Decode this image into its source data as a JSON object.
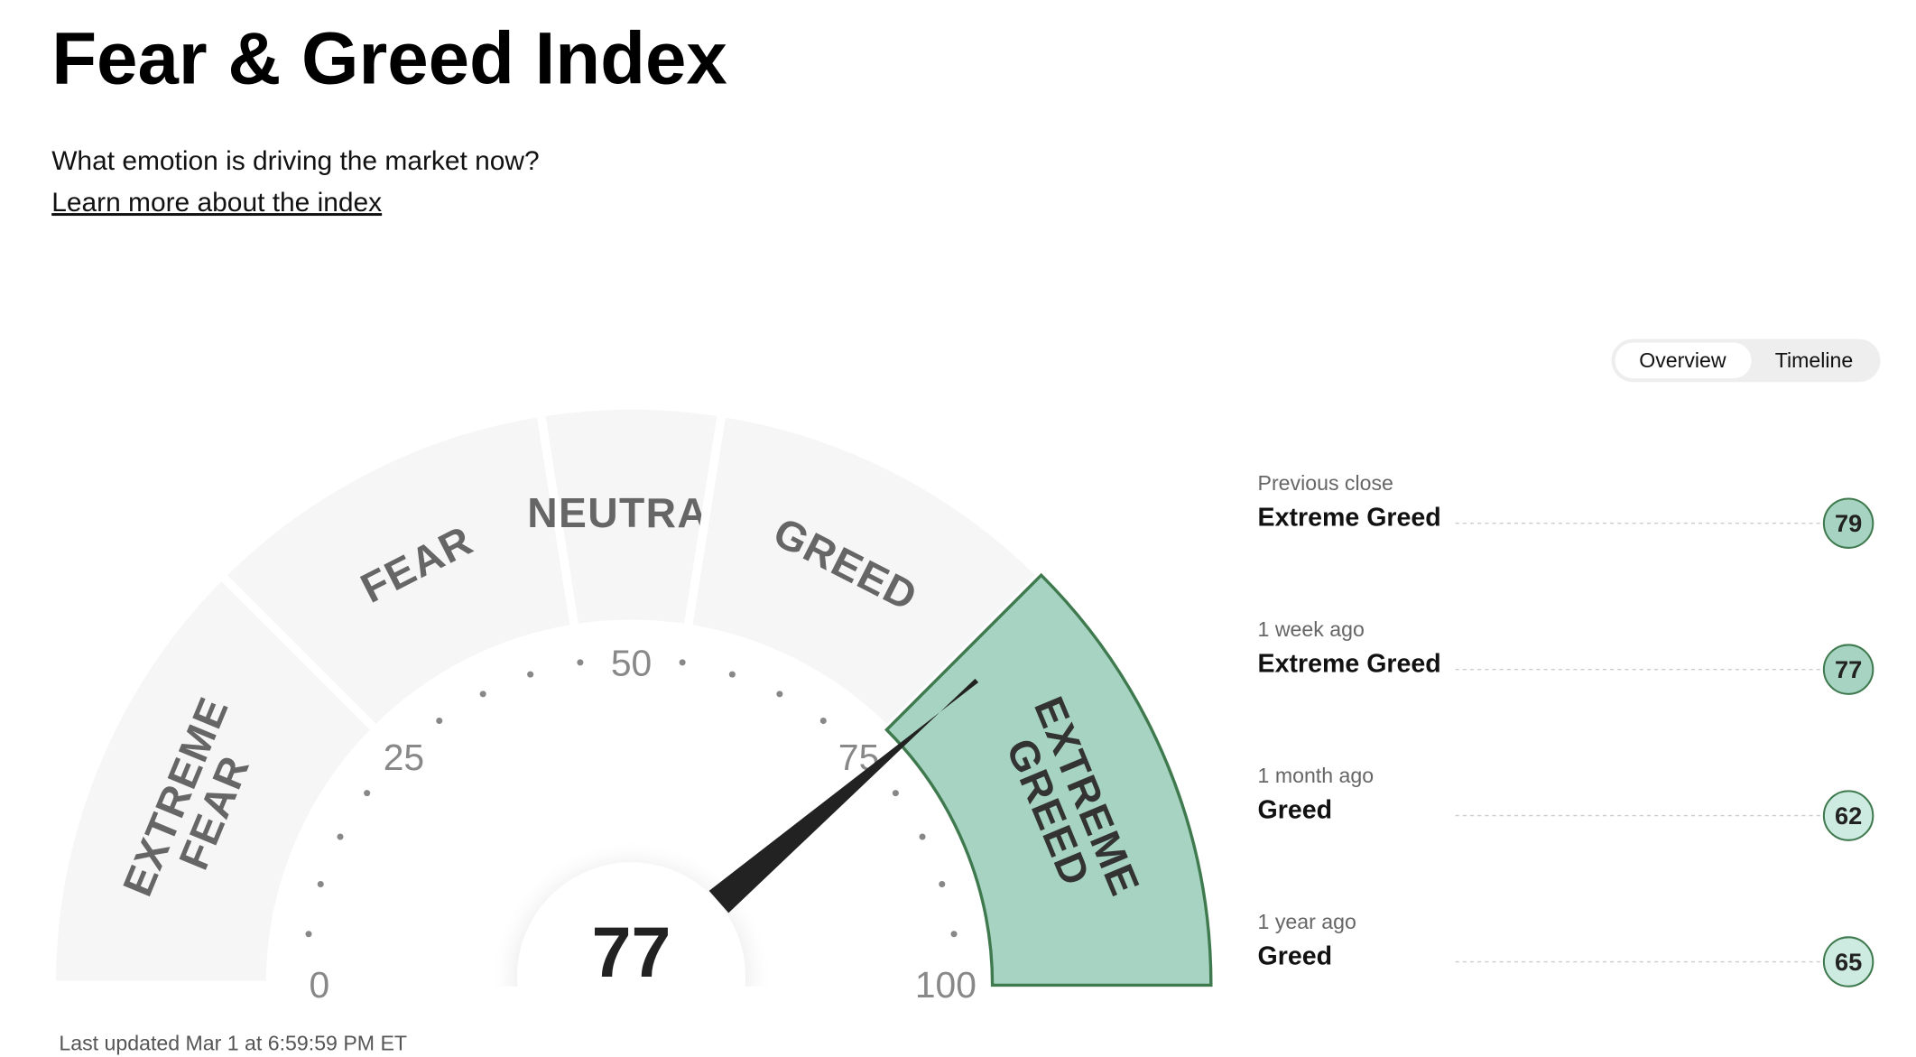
{
  "header": {
    "title": "Fear & Greed Index",
    "subtitle": "What emotion is driving the market now?",
    "link": "Learn more about the index"
  },
  "tabs": [
    "Overview",
    "Timeline"
  ],
  "chart_data": {
    "type": "gauge",
    "value": 77,
    "xlim": [
      0,
      100
    ],
    "xticks": [
      0,
      25,
      50,
      75,
      100
    ],
    "zones": [
      {
        "label": [
          "EXTREME",
          "FEAR"
        ],
        "range": [
          0,
          25
        ]
      },
      {
        "label": [
          "FEAR"
        ],
        "range": [
          25,
          45
        ]
      },
      {
        "label": [
          "NEUTRAL"
        ],
        "range": [
          45,
          55
        ]
      },
      {
        "label": [
          "GREED"
        ],
        "range": [
          55,
          75
        ]
      },
      {
        "label": [
          "EXTREME",
          "GREED"
        ],
        "range": [
          75,
          100
        ]
      }
    ],
    "color": "#a7d4c2"
  },
  "history": [
    {
      "period": "Previous close",
      "rating": "Extreme Greed",
      "value": 79,
      "color": "#a7d4c2"
    },
    {
      "period": "1 week ago",
      "rating": "Extreme Greed",
      "value": 77,
      "color": "#a7d4c2"
    },
    {
      "period": "1 month ago",
      "rating": "Greed",
      "value": 62,
      "color": "#cdebe1"
    },
    {
      "period": "1 year ago",
      "rating": "Greed",
      "value": 65,
      "color": "#cdebe1"
    }
  ],
  "footer": "Last updated Mar 1 at 6:59:59 PM ET"
}
